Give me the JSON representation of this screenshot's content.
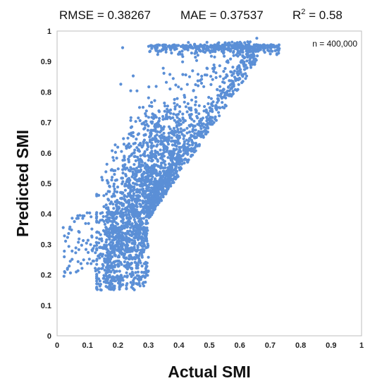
{
  "chart_data": {
    "type": "scatter",
    "metrics": {
      "rmse": "RMSE = 0.38267",
      "mae": "MAE = 0.37537",
      "r2_prefix": "R",
      "r2_sup": "2",
      "r2_value": " = 0.58"
    },
    "n_label": "n = 400,000",
    "xlabel": "Actual SMI",
    "ylabel": "Predicted SMI",
    "xlim": [
      0,
      1
    ],
    "ylim": [
      0,
      1
    ],
    "x_ticks": [
      "0",
      "0.1",
      "0.2",
      "0.3",
      "0.4",
      "0.5",
      "0.6",
      "0.7",
      "0.8",
      "0.9",
      "1"
    ],
    "y_ticks": [
      "0",
      "0.1",
      "0.2",
      "0.3",
      "0.4",
      "0.5",
      "0.6",
      "0.7",
      "0.8",
      "0.9",
      "1"
    ],
    "grid": false,
    "point_color": "#5b8fd6",
    "point_count_rendered": 3000,
    "seed": 7
  }
}
